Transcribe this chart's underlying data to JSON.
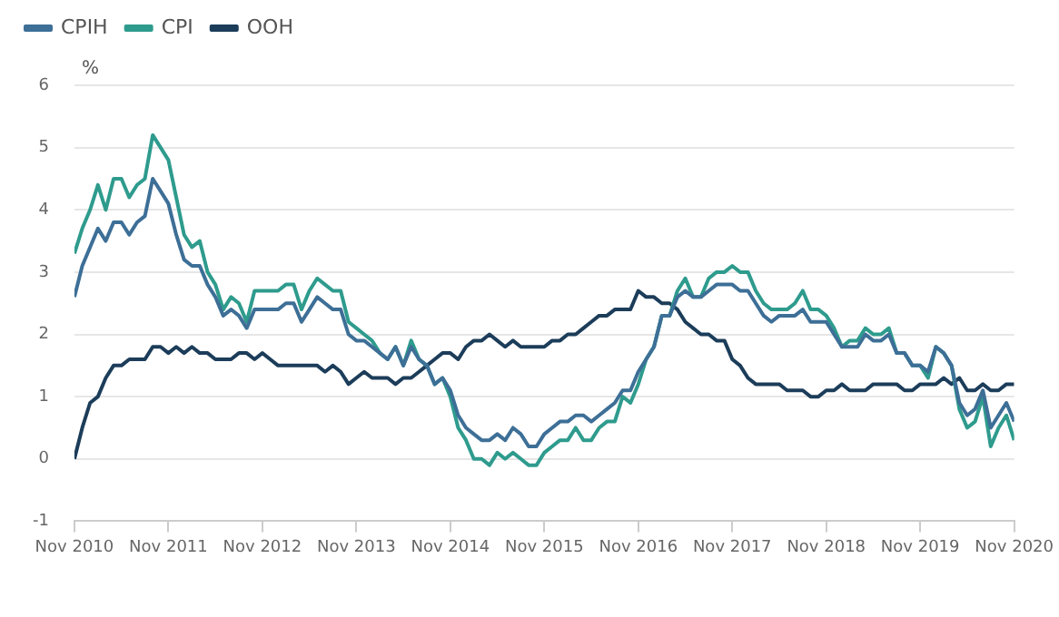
{
  "chart_data": {
    "type": "line",
    "ylabel": "%",
    "legend": "top left",
    "grid": "y",
    "marker": "none",
    "line_style": "solid",
    "ylim": [
      -1,
      6
    ],
    "yticks": [
      -1,
      0,
      1,
      2,
      3,
      4,
      5,
      6
    ],
    "xlim": [
      "2010-11",
      "2020-11"
    ],
    "xticks": [
      {
        "value": "2010-11",
        "label": "Nov 2010"
      },
      {
        "value": "2011-11",
        "label": "Nov 2011"
      },
      {
        "value": "2012-11",
        "label": "Nov 2012"
      },
      {
        "value": "2013-11",
        "label": "Nov 2013"
      },
      {
        "value": "2014-11",
        "label": "Nov 2014"
      },
      {
        "value": "2015-11",
        "label": "Nov 2015"
      },
      {
        "value": "2016-11",
        "label": "Nov 2016"
      },
      {
        "value": "2017-11",
        "label": "Nov 2017"
      },
      {
        "value": "2018-11",
        "label": "Nov 2018"
      },
      {
        "value": "2019-11",
        "label": "Nov 2019"
      },
      {
        "value": "2020-11",
        "label": "Nov 2020"
      }
    ],
    "x": [
      "2010-11",
      "2010-12",
      "2011-01",
      "2011-02",
      "2011-03",
      "2011-04",
      "2011-05",
      "2011-06",
      "2011-07",
      "2011-08",
      "2011-09",
      "2011-10",
      "2011-11",
      "2011-12",
      "2012-01",
      "2012-02",
      "2012-03",
      "2012-04",
      "2012-05",
      "2012-06",
      "2012-07",
      "2012-08",
      "2012-09",
      "2012-10",
      "2012-11",
      "2012-12",
      "2013-01",
      "2013-02",
      "2013-03",
      "2013-04",
      "2013-05",
      "2013-06",
      "2013-07",
      "2013-08",
      "2013-09",
      "2013-10",
      "2013-11",
      "2013-12",
      "2014-01",
      "2014-02",
      "2014-03",
      "2014-04",
      "2014-05",
      "2014-06",
      "2014-07",
      "2014-08",
      "2014-09",
      "2014-10",
      "2014-11",
      "2014-12",
      "2015-01",
      "2015-02",
      "2015-03",
      "2015-04",
      "2015-05",
      "2015-06",
      "2015-07",
      "2015-08",
      "2015-09",
      "2015-10",
      "2015-11",
      "2015-12",
      "2016-01",
      "2016-02",
      "2016-03",
      "2016-04",
      "2016-05",
      "2016-06",
      "2016-07",
      "2016-08",
      "2016-09",
      "2016-10",
      "2016-11",
      "2016-12",
      "2017-01",
      "2017-02",
      "2017-03",
      "2017-04",
      "2017-05",
      "2017-06",
      "2017-07",
      "2017-08",
      "2017-09",
      "2017-10",
      "2017-11",
      "2017-12",
      "2018-01",
      "2018-02",
      "2018-03",
      "2018-04",
      "2018-05",
      "2018-06",
      "2018-07",
      "2018-08",
      "2018-09",
      "2018-10",
      "2018-11",
      "2018-12",
      "2019-01",
      "2019-02",
      "2019-03",
      "2019-04",
      "2019-05",
      "2019-06",
      "2019-07",
      "2019-08",
      "2019-09",
      "2019-10",
      "2019-11",
      "2019-12",
      "2020-01",
      "2020-02",
      "2020-03",
      "2020-04",
      "2020-05",
      "2020-06",
      "2020-07",
      "2020-08",
      "2020-09",
      "2020-10",
      "2020-11"
    ],
    "series": [
      {
        "name": "CPIH",
        "color": "#3d6f97",
        "values": [
          2.6,
          3.1,
          3.4,
          3.7,
          3.5,
          3.8,
          3.8,
          3.6,
          3.8,
          3.9,
          4.5,
          4.3,
          4.1,
          3.6,
          3.2,
          3.1,
          3.1,
          2.8,
          2.6,
          2.3,
          2.4,
          2.3,
          2.1,
          2.4,
          2.4,
          2.4,
          2.4,
          2.5,
          2.5,
          2.2,
          2.4,
          2.6,
          2.5,
          2.4,
          2.4,
          2.0,
          1.9,
          1.9,
          1.8,
          1.7,
          1.6,
          1.8,
          1.5,
          1.8,
          1.6,
          1.5,
          1.2,
          1.3,
          1.1,
          0.7,
          0.5,
          0.4,
          0.3,
          0.3,
          0.4,
          0.3,
          0.5,
          0.4,
          0.2,
          0.2,
          0.4,
          0.5,
          0.6,
          0.6,
          0.7,
          0.7,
          0.6,
          0.7,
          0.8,
          0.9,
          1.1,
          1.1,
          1.4,
          1.6,
          1.8,
          2.3,
          2.3,
          2.6,
          2.7,
          2.6,
          2.6,
          2.7,
          2.8,
          2.8,
          2.8,
          2.7,
          2.7,
          2.5,
          2.3,
          2.2,
          2.3,
          2.3,
          2.3,
          2.4,
          2.2,
          2.2,
          2.2,
          2.0,
          1.8,
          1.8,
          1.8,
          2.0,
          1.9,
          1.9,
          2.0,
          1.7,
          1.7,
          1.5,
          1.5,
          1.4,
          1.8,
          1.7,
          1.5,
          0.9,
          0.7,
          0.8,
          1.1,
          0.5,
          0.7,
          0.9,
          0.6
        ]
      },
      {
        "name": "CPI",
        "color": "#2e9b8d",
        "values": [
          3.3,
          3.7,
          4.0,
          4.4,
          4.0,
          4.5,
          4.5,
          4.2,
          4.4,
          4.5,
          5.2,
          5.0,
          4.8,
          4.2,
          3.6,
          3.4,
          3.5,
          3.0,
          2.8,
          2.4,
          2.6,
          2.5,
          2.2,
          2.7,
          2.7,
          2.7,
          2.7,
          2.8,
          2.8,
          2.4,
          2.7,
          2.9,
          2.8,
          2.7,
          2.7,
          2.2,
          2.1,
          2.0,
          1.9,
          1.7,
          1.6,
          1.8,
          1.5,
          1.9,
          1.6,
          1.5,
          1.2,
          1.3,
          1.0,
          0.5,
          0.3,
          0.0,
          0.0,
          -0.1,
          0.1,
          0.0,
          0.1,
          0.0,
          -0.1,
          -0.1,
          0.1,
          0.2,
          0.3,
          0.3,
          0.5,
          0.3,
          0.3,
          0.5,
          0.6,
          0.6,
          1.0,
          0.9,
          1.2,
          1.6,
          1.8,
          2.3,
          2.3,
          2.7,
          2.9,
          2.6,
          2.6,
          2.9,
          3.0,
          3.0,
          3.1,
          3.0,
          3.0,
          2.7,
          2.5,
          2.4,
          2.4,
          2.4,
          2.5,
          2.7,
          2.4,
          2.4,
          2.3,
          2.1,
          1.8,
          1.9,
          1.9,
          2.1,
          2.0,
          2.0,
          2.1,
          1.7,
          1.7,
          1.5,
          1.5,
          1.3,
          1.8,
          1.7,
          1.5,
          0.8,
          0.5,
          0.6,
          1.0,
          0.2,
          0.5,
          0.7,
          0.3
        ]
      },
      {
        "name": "OOH",
        "color": "#1c3d5a",
        "values": [
          0.0,
          0.5,
          0.9,
          1.0,
          1.3,
          1.5,
          1.5,
          1.6,
          1.6,
          1.6,
          1.8,
          1.8,
          1.7,
          1.8,
          1.7,
          1.8,
          1.7,
          1.7,
          1.6,
          1.6,
          1.6,
          1.7,
          1.7,
          1.6,
          1.7,
          1.6,
          1.5,
          1.5,
          1.5,
          1.5,
          1.5,
          1.5,
          1.4,
          1.5,
          1.4,
          1.2,
          1.3,
          1.4,
          1.3,
          1.3,
          1.3,
          1.2,
          1.3,
          1.3,
          1.4,
          1.5,
          1.6,
          1.7,
          1.7,
          1.6,
          1.8,
          1.9,
          1.9,
          2.0,
          1.9,
          1.8,
          1.9,
          1.8,
          1.8,
          1.8,
          1.8,
          1.9,
          1.9,
          2.0,
          2.0,
          2.1,
          2.2,
          2.3,
          2.3,
          2.4,
          2.4,
          2.4,
          2.7,
          2.6,
          2.6,
          2.5,
          2.5,
          2.4,
          2.2,
          2.1,
          2.0,
          2.0,
          1.9,
          1.9,
          1.6,
          1.5,
          1.3,
          1.2,
          1.2,
          1.2,
          1.2,
          1.1,
          1.1,
          1.1,
          1.0,
          1.0,
          1.1,
          1.1,
          1.2,
          1.1,
          1.1,
          1.1,
          1.2,
          1.2,
          1.2,
          1.2,
          1.1,
          1.1,
          1.2,
          1.2,
          1.2,
          1.3,
          1.2,
          1.3,
          1.1,
          1.1,
          1.2,
          1.1,
          1.1,
          1.2,
          1.2
        ]
      }
    ]
  }
}
